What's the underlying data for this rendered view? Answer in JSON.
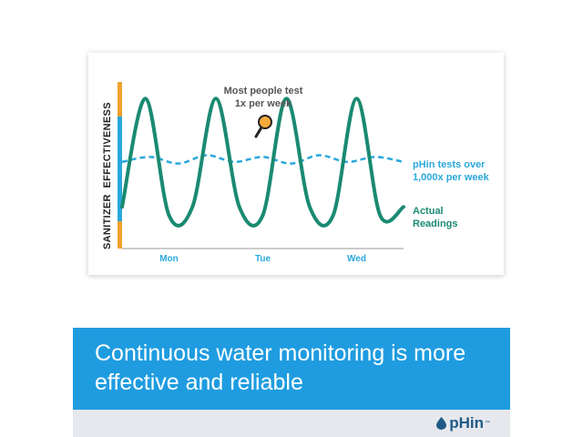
{
  "chart_data": {
    "type": "line",
    "ylabel": "SANITIZER  EFFECTIVENESS",
    "xlabel": "",
    "categories": [
      "Mon",
      "Tue",
      "Wed"
    ],
    "series": [
      {
        "name": "pHin tests over 1,000x per week",
        "style": "dashed",
        "color": "#2aa8dc",
        "x": [
          0,
          0.3,
          0.6,
          0.9,
          1.2,
          1.5,
          1.8,
          2.1,
          2.4,
          2.7,
          3.0
        ],
        "y": [
          0.52,
          0.55,
          0.51,
          0.56,
          0.52,
          0.55,
          0.51,
          0.56,
          0.52,
          0.55,
          0.52
        ]
      },
      {
        "name": "Actual Readings",
        "style": "solid",
        "color": "#1a8a72",
        "x": [
          0,
          0.25,
          0.5,
          0.75,
          1.0,
          1.25,
          1.5,
          1.75,
          2.0,
          2.25,
          2.5,
          2.75,
          3.0
        ],
        "y": [
          0.25,
          0.9,
          0.2,
          0.25,
          0.9,
          0.25,
          0.2,
          0.9,
          0.25,
          0.2,
          0.9,
          0.2,
          0.25
        ]
      }
    ],
    "annotations": [
      {
        "text_lines": [
          "Most people test",
          "1x per week"
        ],
        "x": 1.0,
        "y": 0.9,
        "icon": "magnifier-icon"
      }
    ],
    "y_bar_colors": {
      "top": "#f0a22e",
      "middle": "#2aa8dc",
      "bottom": "#f0a22e"
    },
    "ylim": [
      0,
      1
    ],
    "grid": false
  },
  "labels": {
    "annotation_line1": "Most people test",
    "annotation_line2": "1x per week",
    "dashed_line1": "pHin tests over",
    "dashed_line2": "1,000x per week",
    "solid_line1": "Actual",
    "solid_line2": "Readings"
  },
  "banner": {
    "text": "Continuous water monitoring is more effective and reliable"
  },
  "brand": {
    "name": "pHin",
    "mark": "™"
  }
}
